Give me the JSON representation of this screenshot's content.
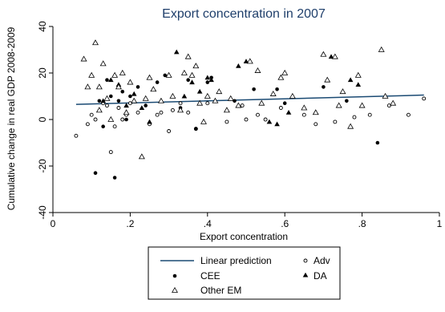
{
  "chart_data": {
    "type": "scatter",
    "title": "Export concentration in 2007",
    "xlabel": "Export concentration",
    "ylabel": "Cumulative change in real GDP 2008-2009",
    "xlim": [
      0,
      1
    ],
    "ylim": [
      -40,
      40
    ],
    "xticks": [
      0,
      0.2,
      0.4,
      0.6,
      0.8,
      1
    ],
    "xtick_labels": [
      "0",
      ".2",
      ".4",
      ".6",
      ".8",
      "1"
    ],
    "yticks": [
      -40,
      -20,
      0,
      20,
      40
    ],
    "ytick_labels": [
      "-40",
      "-20",
      "0",
      "20",
      "40"
    ],
    "grid": false,
    "line": {
      "name": "Linear prediction",
      "x": [
        0.06,
        0.96
      ],
      "y": [
        6.5,
        10.5
      ]
    },
    "series": [
      {
        "name": "Adv",
        "marker": "hollow-circle",
        "points": [
          [
            0.06,
            -7
          ],
          [
            0.09,
            -2
          ],
          [
            0.1,
            2
          ],
          [
            0.11,
            0
          ],
          [
            0.13,
            7
          ],
          [
            0.14,
            6
          ],
          [
            0.15,
            -14
          ],
          [
            0.16,
            -3
          ],
          [
            0.17,
            5
          ],
          [
            0.18,
            0
          ],
          [
            0.19,
            2
          ],
          [
            0.2,
            7
          ],
          [
            0.22,
            3
          ],
          [
            0.25,
            -2
          ],
          [
            0.27,
            2
          ],
          [
            0.28,
            3
          ],
          [
            0.3,
            -5
          ],
          [
            0.31,
            4
          ],
          [
            0.33,
            7
          ],
          [
            0.35,
            3
          ],
          [
            0.37,
            -4
          ],
          [
            0.4,
            7
          ],
          [
            0.45,
            -1
          ],
          [
            0.49,
            6
          ],
          [
            0.5,
            0
          ],
          [
            0.53,
            2
          ],
          [
            0.55,
            0
          ],
          [
            0.59,
            5
          ],
          [
            0.65,
            2
          ],
          [
            0.68,
            -2
          ],
          [
            0.73,
            -1
          ],
          [
            0.78,
            1
          ],
          [
            0.82,
            2
          ],
          [
            0.87,
            6
          ],
          [
            0.92,
            2
          ],
          [
            0.96,
            9
          ]
        ]
      },
      {
        "name": "CEE",
        "marker": "filled-circle",
        "points": [
          [
            0.11,
            -23
          ],
          [
            0.12,
            8
          ],
          [
            0.14,
            17
          ],
          [
            0.15,
            10
          ],
          [
            0.16,
            -25
          ],
          [
            0.17,
            8
          ],
          [
            0.18,
            12
          ],
          [
            0.2,
            10
          ],
          [
            0.22,
            14
          ],
          [
            0.24,
            6
          ],
          [
            0.27,
            16
          ],
          [
            0.29,
            19
          ],
          [
            0.33,
            5
          ],
          [
            0.35,
            17
          ],
          [
            0.37,
            -4
          ],
          [
            0.4,
            16
          ],
          [
            0.41,
            18
          ],
          [
            0.47,
            8
          ],
          [
            0.52,
            13
          ],
          [
            0.58,
            13
          ],
          [
            0.6,
            7
          ],
          [
            0.7,
            14
          ],
          [
            0.76,
            8
          ],
          [
            0.84,
            -10
          ],
          [
            0.13,
            -3
          ],
          [
            0.19,
            0
          ]
        ]
      },
      {
        "name": "DA",
        "marker": "filled-triangle",
        "points": [
          [
            0.13,
            8
          ],
          [
            0.15,
            17
          ],
          [
            0.17,
            15
          ],
          [
            0.19,
            6
          ],
          [
            0.21,
            11
          ],
          [
            0.23,
            5
          ],
          [
            0.25,
            -1
          ],
          [
            0.28,
            8
          ],
          [
            0.32,
            29
          ],
          [
            0.34,
            10
          ],
          [
            0.36,
            16
          ],
          [
            0.38,
            12
          ],
          [
            0.4,
            18
          ],
          [
            0.41,
            17
          ],
          [
            0.48,
            23
          ],
          [
            0.5,
            25
          ],
          [
            0.56,
            -1
          ],
          [
            0.58,
            -2
          ],
          [
            0.61,
            3
          ],
          [
            0.72,
            27
          ],
          [
            0.77,
            17
          ],
          [
            0.79,
            15
          ]
        ]
      },
      {
        "name": "Other EM",
        "marker": "hollow-triangle",
        "points": [
          [
            0.08,
            26
          ],
          [
            0.09,
            14
          ],
          [
            0.1,
            19
          ],
          [
            0.11,
            33
          ],
          [
            0.12,
            14
          ],
          [
            0.12,
            4
          ],
          [
            0.13,
            24
          ],
          [
            0.14,
            9
          ],
          [
            0.15,
            0
          ],
          [
            0.16,
            19
          ],
          [
            0.17,
            14
          ],
          [
            0.18,
            20
          ],
          [
            0.19,
            3
          ],
          [
            0.2,
            16
          ],
          [
            0.21,
            8
          ],
          [
            0.23,
            -16
          ],
          [
            0.24,
            9
          ],
          [
            0.25,
            18
          ],
          [
            0.26,
            13
          ],
          [
            0.28,
            8
          ],
          [
            0.3,
            19
          ],
          [
            0.31,
            10
          ],
          [
            0.33,
            4
          ],
          [
            0.34,
            20
          ],
          [
            0.35,
            27
          ],
          [
            0.36,
            19
          ],
          [
            0.37,
            23
          ],
          [
            0.38,
            7
          ],
          [
            0.39,
            -1
          ],
          [
            0.4,
            10
          ],
          [
            0.42,
            8
          ],
          [
            0.43,
            12
          ],
          [
            0.45,
            4
          ],
          [
            0.46,
            9
          ],
          [
            0.48,
            6
          ],
          [
            0.51,
            25
          ],
          [
            0.53,
            21
          ],
          [
            0.54,
            7
          ],
          [
            0.57,
            11
          ],
          [
            0.59,
            18
          ],
          [
            0.6,
            20
          ],
          [
            0.62,
            10
          ],
          [
            0.65,
            5
          ],
          [
            0.68,
            3
          ],
          [
            0.7,
            28
          ],
          [
            0.71,
            17
          ],
          [
            0.73,
            27
          ],
          [
            0.74,
            6
          ],
          [
            0.75,
            12
          ],
          [
            0.77,
            -3
          ],
          [
            0.79,
            19
          ],
          [
            0.8,
            6
          ],
          [
            0.85,
            30
          ],
          [
            0.86,
            10
          ],
          [
            0.88,
            7
          ]
        ]
      }
    ],
    "legend": {
      "placement": "bottom",
      "items": [
        {
          "label": "Linear prediction",
          "marker": "line"
        },
        {
          "label": "Adv",
          "marker": "hollow-circle"
        },
        {
          "label": "CEE",
          "marker": "filled-circle"
        },
        {
          "label": "DA",
          "marker": "filled-triangle"
        },
        {
          "label": "Other EM",
          "marker": "hollow-triangle"
        }
      ]
    },
    "colors": {
      "title": "#1f3f6b",
      "fit_line": "#1a4a73",
      "markers": "#000000",
      "plot_bg": "#ffffff"
    }
  }
}
